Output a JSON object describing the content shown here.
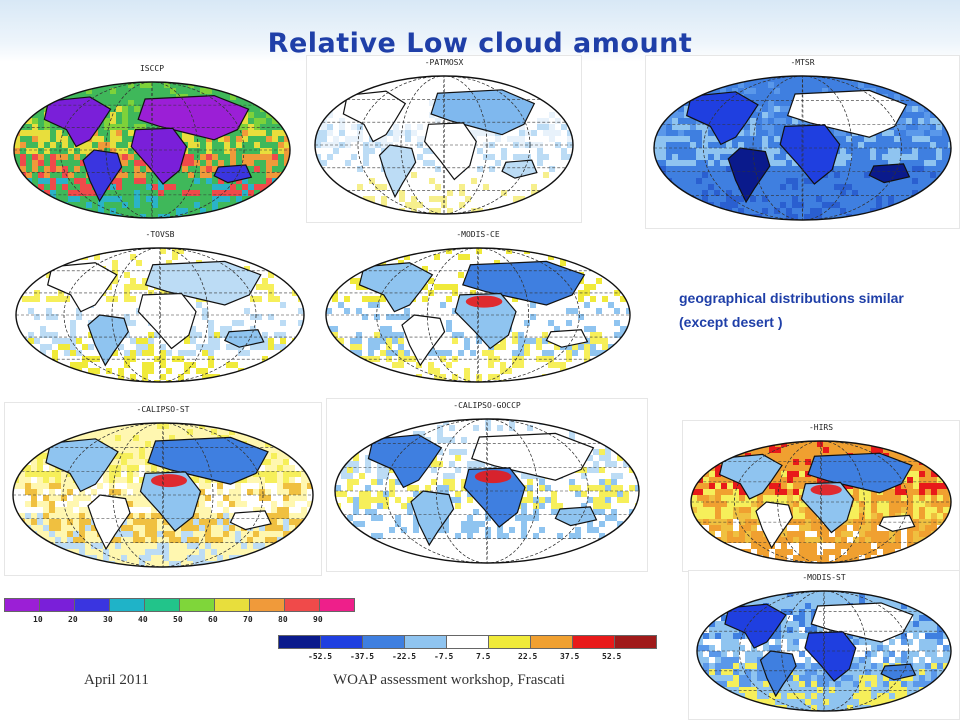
{
  "slide": {
    "title": "Relative Low cloud amount",
    "note_line1": "geographical distributions similar",
    "note_line2": "(except desert )",
    "footer_left": "April 2011",
    "footer_center": "WOAP assessment workshop, Frascati"
  },
  "maps": [
    {
      "id": "isccp",
      "label": "ISCCP",
      "style": "absolute"
    },
    {
      "id": "patmosx",
      "label": "-PATMOSX",
      "style": "light"
    },
    {
      "id": "mtsr",
      "label": "-MTSR",
      "style": "blue"
    },
    {
      "id": "tovsb",
      "label": "-TOVSB",
      "style": "yellow"
    },
    {
      "id": "modis-ce",
      "label": "-MODIS-CE",
      "style": "yellow-desert"
    },
    {
      "id": "calipso-st",
      "label": "-CALIPSO-ST",
      "style": "warm"
    },
    {
      "id": "calipso-goccp",
      "label": "-CALIPSO-GOCCP",
      "style": "mixed"
    },
    {
      "id": "hirs",
      "label": "-HIRS",
      "style": "hot"
    },
    {
      "id": "modis-st",
      "label": "-MODIS-ST",
      "style": "blue-mixed"
    }
  ],
  "colorbar_absolute": {
    "colors": [
      "#9b1fd6",
      "#7a1fd9",
      "#3a35e0",
      "#1fb3c8",
      "#22c48a",
      "#7fd63a",
      "#e8de3c",
      "#f09a3a",
      "#f04a4a",
      "#ee1f8a"
    ],
    "ticks": [
      "10",
      "20",
      "30",
      "40",
      "50",
      "60",
      "70",
      "80",
      "90"
    ]
  },
  "colorbar_relative": {
    "colors": [
      "#0a1a8c",
      "#1f3fe0",
      "#3f7fe0",
      "#8fc4f0",
      "#ffffff",
      "#f0ea3a",
      "#f0a030",
      "#e81a1a",
      "#a01a1a"
    ],
    "ticks": [
      "-52.5",
      "-37.5",
      "-22.5",
      "-7.5",
      "7.5",
      "22.5",
      "37.5",
      "52.5"
    ]
  }
}
